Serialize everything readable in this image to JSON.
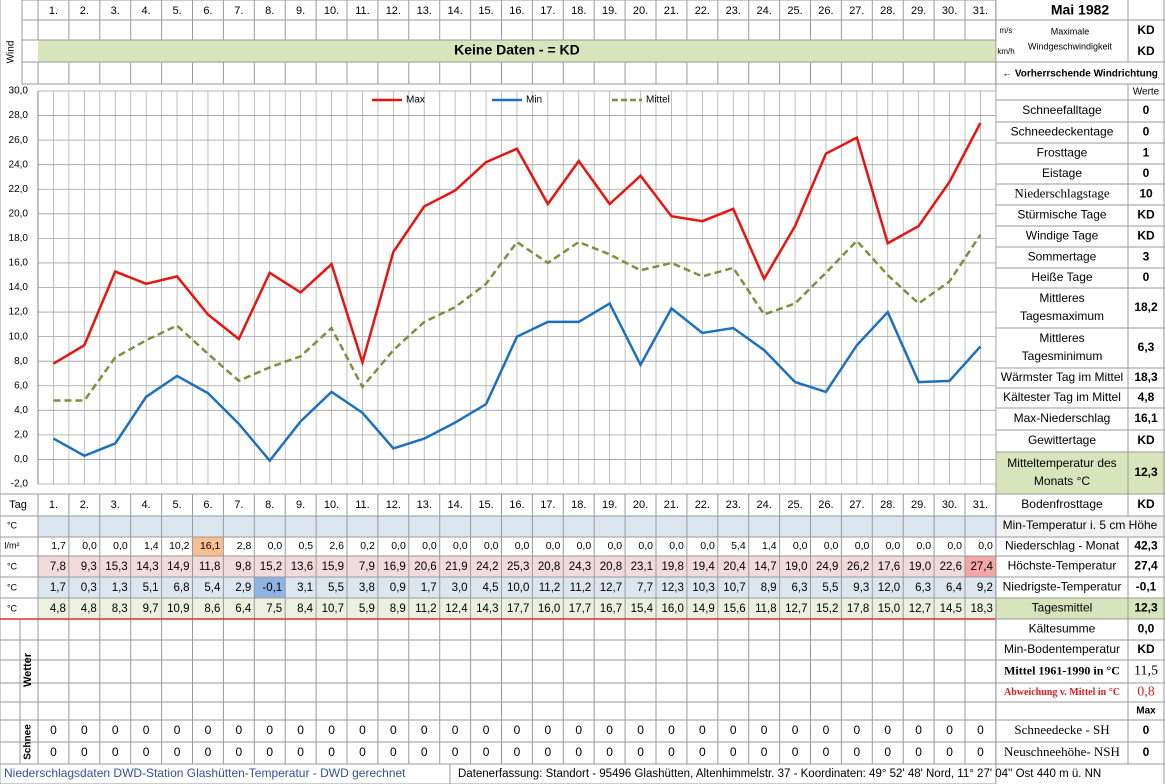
{
  "header": {
    "month": "Mai 1982",
    "wind_label": "Wind",
    "unit_ms": "m/s",
    "unit_kmh": "km/h",
    "max_wind_label": [
      "Maximale",
      "Windgeschwindigkeit"
    ],
    "max_wind_ms": "KD",
    "max_wind_kmh": "KD",
    "no_data": "Keine Daten -  = KD",
    "wind_direction": "← Vorherrschende Windrichtung"
  },
  "chart_data": {
    "type": "line",
    "categories": [
      "1.",
      "2.",
      "3.",
      "4.",
      "5.",
      "6.",
      "7.",
      "8.",
      "9.",
      "10.",
      "11.",
      "12.",
      "13.",
      "14.",
      "15.",
      "16.",
      "17.",
      "18.",
      "19.",
      "20.",
      "21.",
      "22.",
      "23.",
      "24.",
      "25.",
      "26.",
      "27.",
      "28.",
      "29.",
      "30.",
      "31."
    ],
    "ylim": [
      -2,
      30
    ],
    "yticks": [
      {
        "value": -2,
        "label": "-2,0"
      },
      {
        "value": 0,
        "label": "0,0"
      },
      {
        "value": 2,
        "label": "2,0"
      },
      {
        "value": 4,
        "label": "4,0"
      },
      {
        "value": 6,
        "label": "6,0"
      },
      {
        "value": 8,
        "label": "8,0"
      },
      {
        "value": 10,
        "label": "10,0"
      },
      {
        "value": 12,
        "label": "12,0"
      },
      {
        "value": 14,
        "label": "14,0"
      },
      {
        "value": 16,
        "label": "16,0"
      },
      {
        "value": 18,
        "label": "18,0"
      },
      {
        "value": 20,
        "label": "20,0"
      },
      {
        "value": 22,
        "label": "22,0"
      },
      {
        "value": 24,
        "label": "24,0"
      },
      {
        "value": 26,
        "label": "26,0"
      },
      {
        "value": 28,
        "label": "28,0"
      },
      {
        "value": 30,
        "label": "30,0"
      }
    ],
    "grid": true,
    "legend": "top",
    "series": [
      {
        "name": "Max",
        "color": "#e8140f",
        "dash": false,
        "values": [
          7.8,
          9.3,
          15.3,
          14.3,
          14.9,
          11.8,
          9.8,
          15.2,
          13.6,
          15.9,
          7.9,
          16.9,
          20.6,
          21.9,
          24.2,
          25.3,
          20.8,
          24.3,
          20.8,
          23.1,
          19.8,
          19.4,
          20.4,
          14.7,
          19.0,
          24.9,
          26.2,
          17.6,
          19.0,
          22.6,
          27.4
        ],
        "value_labels": [
          "7,8",
          "9,3",
          "15,3",
          "14,3",
          "14,9",
          "11,8",
          "9,8",
          "15,2",
          "13,6",
          "15,9",
          "7,9",
          "16,9",
          "20,6",
          "21,9",
          "24,2",
          "25,3",
          "20,8",
          "24,3",
          "20,8",
          "23,1",
          "19,8",
          "19,4",
          "20,4",
          "14,7",
          "19,0",
          "24,9",
          "26,2",
          "17,6",
          "19,0",
          "22,6",
          "27,4"
        ]
      },
      {
        "name": "Min",
        "color": "#1f6fbf",
        "dash": false,
        "values": [
          1.7,
          0.3,
          1.3,
          5.1,
          6.8,
          5.4,
          2.9,
          -0.1,
          3.1,
          5.5,
          3.8,
          0.9,
          1.7,
          3.0,
          4.5,
          10.0,
          11.2,
          11.2,
          12.7,
          7.7,
          12.3,
          10.3,
          10.7,
          8.9,
          6.3,
          5.5,
          9.3,
          12.0,
          6.3,
          6.4,
          9.2
        ],
        "value_labels": [
          "1,7",
          "0,3",
          "1,3",
          "5,1",
          "6,8",
          "5,4",
          "2,9",
          "-0,1",
          "3,1",
          "5,5",
          "3,8",
          "0,9",
          "1,7",
          "3,0",
          "4,5",
          "10,0",
          "11,2",
          "11,2",
          "12,7",
          "7,7",
          "12,3",
          "10,3",
          "10,7",
          "8,9",
          "6,3",
          "5,5",
          "9,3",
          "12,0",
          "6,3",
          "6,4",
          "9,2"
        ]
      },
      {
        "name": "Mittel",
        "color": "#77933c",
        "dash": true,
        "values": [
          4.8,
          4.8,
          8.3,
          9.7,
          10.9,
          8.6,
          6.4,
          7.5,
          8.4,
          10.7,
          5.9,
          8.9,
          11.2,
          12.4,
          14.3,
          17.7,
          16.0,
          17.7,
          16.7,
          15.4,
          16.0,
          14.9,
          15.6,
          11.8,
          12.7,
          15.2,
          17.8,
          15.0,
          12.7,
          14.5,
          18.3
        ],
        "value_labels": [
          "4,8",
          "4,8",
          "8,3",
          "9,7",
          "10,9",
          "8,6",
          "6,4",
          "7,5",
          "8,4",
          "10,7",
          "5,9",
          "8,9",
          "11,2",
          "12,4",
          "14,3",
          "17,7",
          "16,0",
          "17,7",
          "16,7",
          "15,4",
          "16,0",
          "14,9",
          "15,6",
          "11,8",
          "12,7",
          "15,2",
          "17,8",
          "15,0",
          "12,7",
          "14,5",
          "18,3"
        ]
      }
    ]
  },
  "table": {
    "day_label": "Tag",
    "row_units": [
      "°C",
      "l/m²",
      "°C",
      "°C",
      "°C"
    ],
    "precipitation": [
      "1,7",
      "0,0",
      "0,0",
      "1,4",
      "10,2",
      "16,1",
      "2,8",
      "0,0",
      "0,5",
      "2,6",
      "0,2",
      "0,0",
      "0,0",
      "0,0",
      "0,0",
      "0,0",
      "0,0",
      "0,0",
      "0,0",
      "0,0",
      "0,0",
      "0,0",
      "5,4",
      "1,4",
      "0,0",
      "0,0",
      "0,0",
      "0,0",
      "0,0",
      "0,0",
      "0,0"
    ],
    "weather_label": "Wetter",
    "snow_label": "Schnee",
    "snow_depth": [
      0,
      0,
      0,
      0,
      0,
      0,
      0,
      0,
      0,
      0,
      0,
      0,
      0,
      0,
      0,
      0,
      0,
      0,
      0,
      0,
      0,
      0,
      0,
      0,
      0,
      0,
      0,
      0,
      0,
      0,
      0
    ],
    "new_snow": [
      0,
      0,
      0,
      0,
      0,
      0,
      0,
      0,
      0,
      0,
      0,
      0,
      0,
      0,
      0,
      0,
      0,
      0,
      0,
      0,
      0,
      0,
      0,
      0,
      0,
      0,
      0,
      0,
      0,
      0,
      0
    ]
  },
  "summary": {
    "header": "Werte",
    "items": [
      {
        "label": "Schneefalltage",
        "value": 0
      },
      {
        "label": "Schneedeckentage",
        "value": 0
      },
      {
        "label": "Frosttage",
        "value": 1
      },
      {
        "label": "Eistage",
        "value": 0
      },
      {
        "label": "Niederschlagstage",
        "value": 10
      },
      {
        "label": "Stürmische Tage",
        "value": "KD"
      },
      {
        "label": "Windige Tage",
        "value": "KD"
      },
      {
        "label": "Sommertage",
        "value": 3
      },
      {
        "label": "Heiße Tage",
        "value": 0
      },
      {
        "label": [
          "Mittleres",
          "Tagesmaximum"
        ],
        "value": "18,2"
      },
      {
        "label": [
          "Mittleres",
          "Tagesminimum"
        ],
        "value": "6,3"
      },
      {
        "label": "Wärmster Tag im Mittel",
        "value": "18,3"
      },
      {
        "label": "Kältester Tag im Mittel",
        "value": "4,8"
      },
      {
        "label": "Max-Niederschlag",
        "value": "16,1"
      },
      {
        "label": "Gewittertage",
        "value": "KD"
      },
      {
        "label": [
          "Mitteltemperatur des",
          "Monats °C"
        ],
        "value": "12,3"
      },
      {
        "label": "Bodenfrosttage",
        "value": "KD"
      }
    ]
  },
  "monthly": {
    "header": "Min-Temperatur i. 5 cm Höhe",
    "max_label": "Max",
    "items": [
      {
        "label": "Niederschlag - Monat",
        "value": "42,3"
      },
      {
        "label": "Höchste-Temperatur",
        "value": "27,4"
      },
      {
        "label": "Niedrigste-Temperatur",
        "value": "-0,1"
      },
      {
        "label": "Tagesmittel",
        "value": "12,3"
      },
      {
        "label": "Kältesumme",
        "value": "0,0"
      },
      {
        "label": "Min-Bodentemperatur",
        "value": "KD"
      },
      {
        "label": "Mittel 1961-1990 in °C",
        "value": "11,5"
      },
      {
        "label": "Abweichung v. Mittel in °C",
        "value": "0,8"
      },
      {
        "label": "Schneedecke -  SH",
        "value": 0
      },
      {
        "label": "Neuschneehöhe- NSH",
        "value": 0
      }
    ]
  },
  "footer": {
    "left": "Niederschlagsdaten DWD-Station Glashütten-Temperatur -  DWD gerechnet",
    "right": "Datenerfassung: Standort -  95496  Glashütten, Altenhimmelstr. 37 - Koordinaten:  49° 52' 48' Nord,   11° 27' 04'' Ost   440 m ü. NN"
  }
}
